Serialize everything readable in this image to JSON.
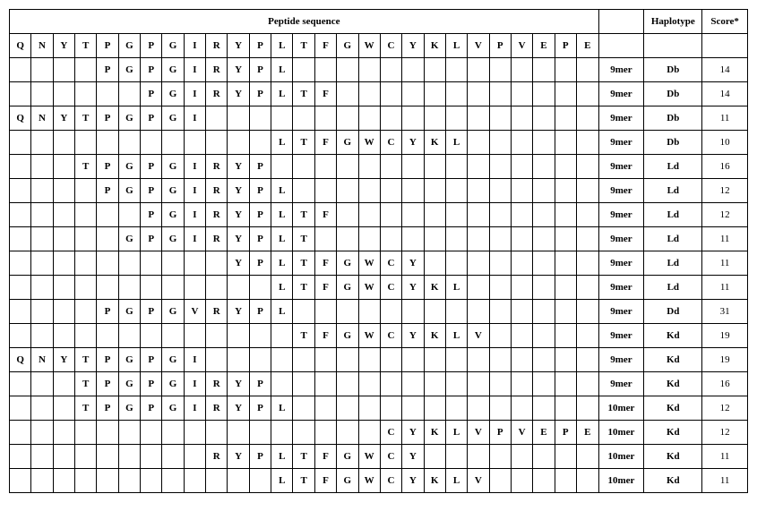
{
  "header": {
    "peptide_sequence": "Peptide sequence",
    "haplotype": "Haplotype",
    "score": "Score*"
  },
  "positions": [
    "Q",
    "N",
    "Y",
    "T",
    "P",
    "G",
    "P",
    "G",
    "I",
    "R",
    "Y",
    "P",
    "L",
    "T",
    "F",
    "G",
    "W",
    "C",
    "Y",
    "K",
    "L",
    "V",
    "P",
    "V",
    "E",
    "P",
    "E"
  ],
  "rows": [
    {
      "seq": [
        "",
        "",
        "",
        "",
        "P",
        "G",
        "P",
        "G",
        "I",
        "R",
        "Y",
        "P",
        "L",
        "",
        "",
        "",
        "",
        "",
        "",
        "",
        "",
        "",
        "",
        "",
        "",
        "",
        ""
      ],
      "mer": "9mer",
      "hap": "Db",
      "score": "14"
    },
    {
      "seq": [
        "",
        "",
        "",
        "",
        "",
        "",
        "P",
        "G",
        "I",
        "R",
        "Y",
        "P",
        "L",
        "T",
        "F",
        "",
        "",
        "",
        "",
        "",
        "",
        "",
        "",
        "",
        "",
        "",
        ""
      ],
      "mer": "9mer",
      "hap": "Db",
      "score": "14"
    },
    {
      "seq": [
        "Q",
        "N",
        "Y",
        "T",
        "P",
        "G",
        "P",
        "G",
        "I",
        "",
        "",
        "",
        "",
        "",
        "",
        "",
        "",
        "",
        "",
        "",
        "",
        "",
        "",
        "",
        "",
        "",
        ""
      ],
      "mer": "9mer",
      "hap": "Db",
      "score": "11"
    },
    {
      "seq": [
        "",
        "",
        "",
        "",
        "",
        "",
        "",
        "",
        "",
        "",
        "",
        "",
        "L",
        "T",
        "F",
        "G",
        "W",
        "C",
        "Y",
        "K",
        "L",
        "",
        "",
        "",
        "",
        "",
        ""
      ],
      "mer": "9mer",
      "hap": "Db",
      "score": "10"
    },
    {
      "seq": [
        "",
        "",
        "",
        "T",
        "P",
        "G",
        "P",
        "G",
        "I",
        "R",
        "Y",
        "P",
        "",
        "",
        "",
        "",
        "",
        "",
        "",
        "",
        "",
        "",
        "",
        "",
        "",
        "",
        ""
      ],
      "mer": "9mer",
      "hap": "Ld",
      "score": "16"
    },
    {
      "seq": [
        "",
        "",
        "",
        "",
        "P",
        "G",
        "P",
        "G",
        "I",
        "R",
        "Y",
        "P",
        "L",
        "",
        "",
        "",
        "",
        "",
        "",
        "",
        "",
        "",
        "",
        "",
        "",
        "",
        ""
      ],
      "mer": "9mer",
      "hap": "Ld",
      "score": "12"
    },
    {
      "seq": [
        "",
        "",
        "",
        "",
        "",
        "",
        "P",
        "G",
        "I",
        "R",
        "Y",
        "P",
        "L",
        "T",
        "F",
        "",
        "",
        "",
        "",
        "",
        "",
        "",
        "",
        "",
        "",
        "",
        ""
      ],
      "mer": "9mer",
      "hap": "Ld",
      "score": "12"
    },
    {
      "seq": [
        "",
        "",
        "",
        "",
        "",
        "G",
        "P",
        "G",
        "I",
        "R",
        "Y",
        "P",
        "L",
        "T",
        "",
        "",
        "",
        "",
        "",
        "",
        "",
        "",
        "",
        "",
        "",
        "",
        ""
      ],
      "mer": "9mer",
      "hap": "Ld",
      "score": "11"
    },
    {
      "seq": [
        "",
        "",
        "",
        "",
        "",
        "",
        "",
        "",
        "",
        "",
        "Y",
        "P",
        "L",
        "T",
        "F",
        "G",
        "W",
        "C",
        "Y",
        "",
        "",
        "",
        "",
        "",
        "",
        "",
        ""
      ],
      "mer": "9mer",
      "hap": "Ld",
      "score": "11"
    },
    {
      "seq": [
        "",
        "",
        "",
        "",
        "",
        "",
        "",
        "",
        "",
        "",
        "",
        "",
        "L",
        "T",
        "F",
        "G",
        "W",
        "C",
        "Y",
        "K",
        "L",
        "",
        "",
        "",
        "",
        "",
        ""
      ],
      "mer": "9mer",
      "hap": "Ld",
      "score": "11"
    },
    {
      "seq": [
        "",
        "",
        "",
        "",
        "P",
        "G",
        "P",
        "G",
        "V",
        "R",
        "Y",
        "P",
        "L",
        "",
        "",
        "",
        "",
        "",
        "",
        "",
        "",
        "",
        "",
        "",
        "",
        "",
        ""
      ],
      "mer": "9mer",
      "hap": "Dd",
      "score": "31"
    },
    {
      "seq": [
        "",
        "",
        "",
        "",
        "",
        "",
        "",
        "",
        "",
        "",
        "",
        "",
        "",
        "T",
        "F",
        "G",
        "W",
        "C",
        "Y",
        "K",
        "L",
        "V",
        "",
        "",
        "",
        "",
        ""
      ],
      "mer": "9mer",
      "hap": "Kd",
      "score": "19"
    },
    {
      "seq": [
        "Q",
        "N",
        "Y",
        "T",
        "P",
        "G",
        "P",
        "G",
        "I",
        "",
        "",
        "",
        "",
        "",
        "",
        "",
        "",
        "",
        "",
        "",
        "",
        "",
        "",
        "",
        "",
        "",
        ""
      ],
      "mer": "9mer",
      "hap": "Kd",
      "score": "19"
    },
    {
      "seq": [
        "",
        "",
        "",
        "T",
        "P",
        "G",
        "P",
        "G",
        "I",
        "R",
        "Y",
        "P",
        "",
        "",
        "",
        "",
        "",
        "",
        "",
        "",
        "",
        "",
        "",
        "",
        "",
        "",
        ""
      ],
      "mer": "9mer",
      "hap": "Kd",
      "score": "16"
    },
    {
      "seq": [
        "",
        "",
        "",
        "T",
        "P",
        "G",
        "P",
        "G",
        "I",
        "R",
        "Y",
        "P",
        "L",
        "",
        "",
        "",
        "",
        "",
        "",
        "",
        "",
        "",
        "",
        "",
        "",
        "",
        ""
      ],
      "mer": "10mer",
      "hap": "Kd",
      "score": "12"
    },
    {
      "seq": [
        "",
        "",
        "",
        "",
        "",
        "",
        "",
        "",
        "",
        "",
        "",
        "",
        "",
        "",
        "",
        "",
        "",
        "C",
        "Y",
        "K",
        "L",
        "V",
        "P",
        "V",
        "E",
        "P",
        "E"
      ],
      "mer": "10mer",
      "hap": "Kd",
      "score": "12"
    },
    {
      "seq": [
        "",
        "",
        "",
        "",
        "",
        "",
        "",
        "",
        "",
        "R",
        "Y",
        "P",
        "L",
        "T",
        "F",
        "G",
        "W",
        "C",
        "Y",
        "",
        "",
        "",
        "",
        "",
        "",
        "",
        ""
      ],
      "mer": "10mer",
      "hap": "Kd",
      "score": "11"
    },
    {
      "seq": [
        "",
        "",
        "",
        "",
        "",
        "",
        "",
        "",
        "",
        "",
        "",
        "",
        "L",
        "T",
        "F",
        "G",
        "W",
        "C",
        "Y",
        "K",
        "L",
        "V",
        "",
        "",
        "",
        "",
        ""
      ],
      "mer": "10mer",
      "hap": "Kd",
      "score": "11"
    }
  ]
}
